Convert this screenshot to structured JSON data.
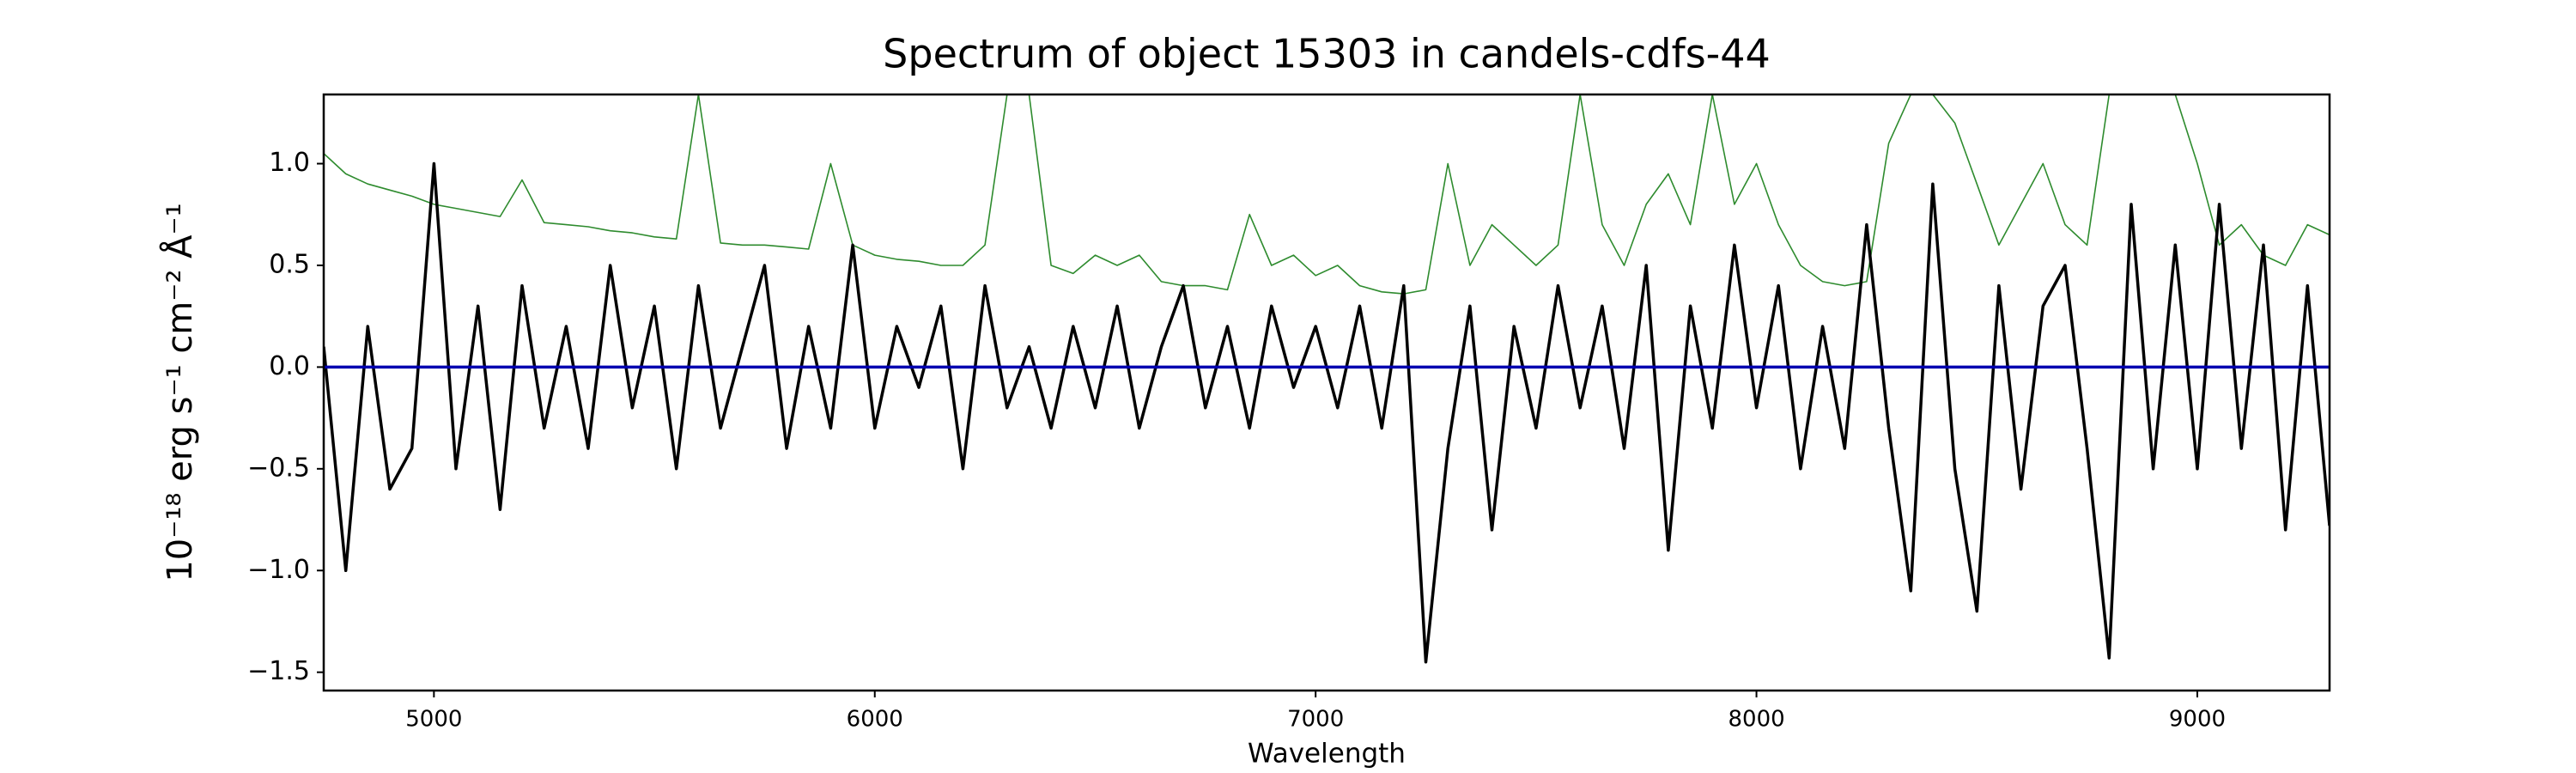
{
  "chart_data": {
    "type": "line",
    "title": "Spectrum of object 15303 in candels-cdfs-44",
    "x_label": "Wavelength",
    "y_label": "10⁻¹⁸ erg s⁻¹ cm⁻² Å⁻¹",
    "x": [
      4750,
      4800,
      4850,
      4900,
      4950,
      5000,
      5050,
      5100,
      5150,
      5200,
      5250,
      5300,
      5350,
      5400,
      5450,
      5500,
      5550,
      5600,
      5650,
      5700,
      5750,
      5800,
      5850,
      5900,
      5950,
      6000,
      6050,
      6100,
      6150,
      6200,
      6250,
      6300,
      6350,
      6400,
      6450,
      6500,
      6550,
      6600,
      6650,
      6700,
      6750,
      6800,
      6850,
      6900,
      6950,
      7000,
      7050,
      7100,
      7150,
      7200,
      7250,
      7300,
      7350,
      7400,
      7450,
      7500,
      7550,
      7600,
      7650,
      7700,
      7750,
      7800,
      7850,
      7900,
      7950,
      8000,
      8050,
      8100,
      8150,
      8200,
      8250,
      8300,
      8350,
      8400,
      8450,
      8500,
      8550,
      8600,
      8650,
      8700,
      8750,
      8800,
      8850,
      8900,
      8950,
      9000,
      9050,
      9100,
      9150,
      9200,
      9250,
      9300
    ],
    "series": [
      {
        "color": "#2e8b2e",
        "width": 1.6,
        "values": [
          1.05,
          0.95,
          0.9,
          0.87,
          0.84,
          0.8,
          0.78,
          0.76,
          0.74,
          0.92,
          0.71,
          0.7,
          0.69,
          0.67,
          0.66,
          0.64,
          0.63,
          1.34,
          0.61,
          0.6,
          0.6,
          0.59,
          0.58,
          1.0,
          0.6,
          0.55,
          0.53,
          0.52,
          0.5,
          0.5,
          0.6,
          1.34,
          1.34,
          0.5,
          0.46,
          0.55,
          0.5,
          0.55,
          0.42,
          0.4,
          0.4,
          0.38,
          0.75,
          0.5,
          0.55,
          0.45,
          0.5,
          0.4,
          0.37,
          0.36,
          0.38,
          1.0,
          0.5,
          0.7,
          0.6,
          0.5,
          0.6,
          1.34,
          0.7,
          0.5,
          0.8,
          0.95,
          0.7,
          1.34,
          0.8,
          1.0,
          0.7,
          0.5,
          0.42,
          0.4,
          0.42,
          1.1,
          1.34,
          1.34,
          1.2,
          0.9,
          0.6,
          0.8,
          1.0,
          0.7,
          0.6,
          1.34,
          1.34,
          1.34,
          1.34,
          1.0,
          0.6,
          0.7,
          0.55,
          0.5,
          0.7,
          0.65
        ]
      },
      {
        "color": "#000000",
        "width": 3.5,
        "values": [
          0.1,
          -1.0,
          0.2,
          -0.6,
          -0.4,
          1.0,
          -0.5,
          0.3,
          -0.7,
          0.4,
          -0.3,
          0.2,
          -0.4,
          0.5,
          -0.2,
          0.3,
          -0.5,
          0.4,
          -0.3,
          0.1,
          0.5,
          -0.4,
          0.2,
          -0.3,
          0.6,
          -0.3,
          0.2,
          -0.1,
          0.3,
          -0.5,
          0.4,
          -0.2,
          0.1,
          -0.3,
          0.2,
          -0.2,
          0.3,
          -0.3,
          0.1,
          0.4,
          -0.2,
          0.2,
          -0.3,
          0.3,
          -0.1,
          0.2,
          -0.2,
          0.3,
          -0.3,
          0.4,
          -1.45,
          -0.4,
          0.3,
          -0.8,
          0.2,
          -0.3,
          0.4,
          -0.2,
          0.3,
          -0.4,
          0.5,
          -0.9,
          0.3,
          -0.3,
          0.6,
          -0.2,
          0.4,
          -0.5,
          0.2,
          -0.4,
          0.7,
          -0.3,
          -1.1,
          0.9,
          -0.5,
          -1.2,
          0.4,
          -0.6,
          0.3,
          0.5,
          -0.4,
          -1.43,
          0.8,
          -0.5,
          0.6,
          -0.5,
          0.8,
          -0.4,
          0.6,
          -0.8,
          0.4,
          -0.78
        ]
      },
      {
        "color": "#0000b0",
        "width": 3.5,
        "values": [
          0,
          0,
          0,
          0,
          0,
          0,
          0,
          0,
          0,
          0,
          0,
          0,
          0,
          0,
          0,
          0,
          0,
          0,
          0,
          0,
          0,
          0,
          0,
          0,
          0,
          0,
          0,
          0,
          0,
          0,
          0,
          0,
          0,
          0,
          0,
          0,
          0,
          0,
          0,
          0,
          0,
          0,
          0,
          0,
          0,
          0,
          0,
          0,
          0,
          0,
          0,
          0,
          0,
          0,
          0,
          0,
          0,
          0,
          0,
          0,
          0,
          0,
          0,
          0,
          0,
          0,
          0,
          0,
          0,
          0,
          0,
          0,
          0,
          0,
          0,
          0,
          0,
          0,
          0,
          0,
          0,
          0,
          0,
          0,
          0,
          0,
          0,
          0,
          0,
          0,
          0,
          0
        ]
      }
    ],
    "xlim": [
      4750,
      9300
    ],
    "ylim": [
      -1.59,
      1.34
    ],
    "xticks": [
      5000,
      6000,
      7000,
      8000,
      9000
    ],
    "yticks": [
      {
        "value": -1.5,
        "label": "−1.5"
      },
      {
        "value": -1.0,
        "label": "−1.0"
      },
      {
        "value": -0.5,
        "label": "−0.5"
      },
      {
        "value": 0.0,
        "label": "0.0"
      },
      {
        "value": 0.5,
        "label": "0.5"
      },
      {
        "value": 1.0,
        "label": "1.0"
      }
    ]
  }
}
